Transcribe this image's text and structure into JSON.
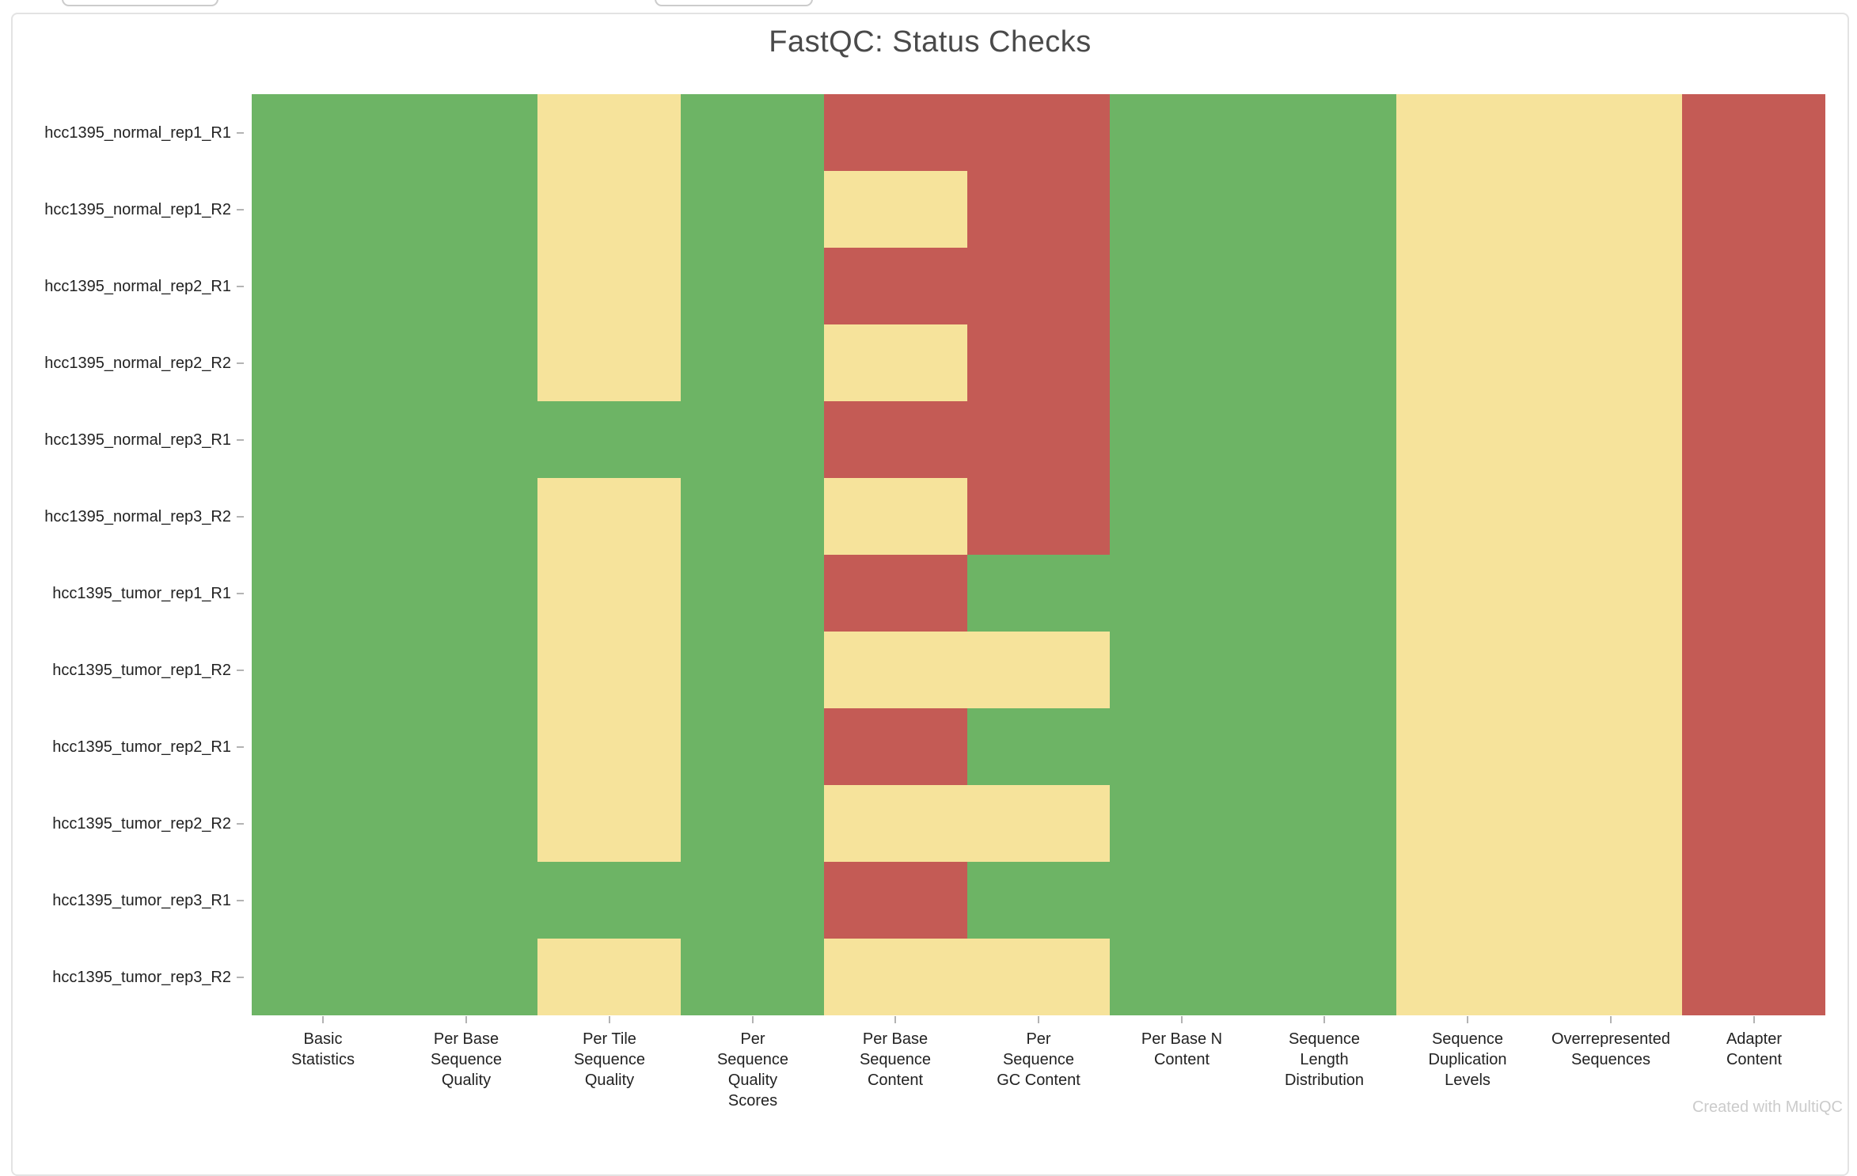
{
  "header": {
    "title": "FastQC: Status Checks"
  },
  "footer": {
    "watermark": "Created with MultiQC"
  },
  "chart_data": {
    "type": "heatmap",
    "title": "FastQC: Status Checks",
    "legend_position": "none",
    "grid": "off",
    "rows": [
      "hcc1395_normal_rep1_R1",
      "hcc1395_normal_rep1_R2",
      "hcc1395_normal_rep2_R1",
      "hcc1395_normal_rep2_R2",
      "hcc1395_normal_rep3_R1",
      "hcc1395_normal_rep3_R2",
      "hcc1395_tumor_rep1_R1",
      "hcc1395_tumor_rep1_R2",
      "hcc1395_tumor_rep2_R1",
      "hcc1395_tumor_rep2_R2",
      "hcc1395_tumor_rep3_R1",
      "hcc1395_tumor_rep3_R2"
    ],
    "columns": [
      "Basic Statistics",
      "Per Base Sequence Quality",
      "Per Tile Sequence Quality",
      "Per Sequence Quality Scores",
      "Per Base Sequence Content",
      "Per Sequence GC Content",
      "Per Base N Content",
      "Sequence Length Distribution",
      "Sequence Duplication Levels",
      "Overrepresented Sequences",
      "Adapter Content"
    ],
    "column_label_lines": [
      [
        "Basic",
        "Statistics"
      ],
      [
        "Per Base",
        "Sequence",
        "Quality"
      ],
      [
        "Per Tile",
        "Sequence",
        "Quality"
      ],
      [
        "Per",
        "Sequence",
        "Quality",
        "Scores"
      ],
      [
        "Per Base",
        "Sequence",
        "Content"
      ],
      [
        "Per",
        "Sequence",
        "GC Content"
      ],
      [
        "Per Base N",
        "Content"
      ],
      [
        "Sequence",
        "Length",
        "Distribution"
      ],
      [
        "Sequence",
        "Duplication",
        "Levels"
      ],
      [
        "Overrepresented",
        "Sequences"
      ],
      [
        "Adapter",
        "Content"
      ]
    ],
    "statuses": [
      [
        "pass",
        "pass",
        "warn",
        "pass",
        "fail",
        "fail",
        "pass",
        "pass",
        "warn",
        "warn",
        "fail"
      ],
      [
        "pass",
        "pass",
        "warn",
        "pass",
        "warn",
        "fail",
        "pass",
        "pass",
        "warn",
        "warn",
        "fail"
      ],
      [
        "pass",
        "pass",
        "warn",
        "pass",
        "fail",
        "fail",
        "pass",
        "pass",
        "warn",
        "warn",
        "fail"
      ],
      [
        "pass",
        "pass",
        "warn",
        "pass",
        "warn",
        "fail",
        "pass",
        "pass",
        "warn",
        "warn",
        "fail"
      ],
      [
        "pass",
        "pass",
        "pass",
        "pass",
        "fail",
        "fail",
        "pass",
        "pass",
        "warn",
        "warn",
        "fail"
      ],
      [
        "pass",
        "pass",
        "warn",
        "pass",
        "warn",
        "fail",
        "pass",
        "pass",
        "warn",
        "warn",
        "fail"
      ],
      [
        "pass",
        "pass",
        "warn",
        "pass",
        "fail",
        "pass",
        "pass",
        "pass",
        "warn",
        "warn",
        "fail"
      ],
      [
        "pass",
        "pass",
        "warn",
        "pass",
        "warn",
        "warn",
        "pass",
        "pass",
        "warn",
        "warn",
        "fail"
      ],
      [
        "pass",
        "pass",
        "warn",
        "pass",
        "fail",
        "pass",
        "pass",
        "pass",
        "warn",
        "warn",
        "fail"
      ],
      [
        "pass",
        "pass",
        "warn",
        "pass",
        "warn",
        "warn",
        "pass",
        "pass",
        "warn",
        "warn",
        "fail"
      ],
      [
        "pass",
        "pass",
        "pass",
        "pass",
        "fail",
        "pass",
        "pass",
        "pass",
        "warn",
        "warn",
        "fail"
      ],
      [
        "pass",
        "pass",
        "warn",
        "pass",
        "warn",
        "warn",
        "pass",
        "pass",
        "warn",
        "warn",
        "fail"
      ]
    ],
    "colors": {
      "pass": "#6db465",
      "warn": "#f6e39b",
      "fail": "#c45b55"
    },
    "tick_color": "#b3b3b3",
    "title_color": "#4a4a4a",
    "label_color": "#222222"
  }
}
